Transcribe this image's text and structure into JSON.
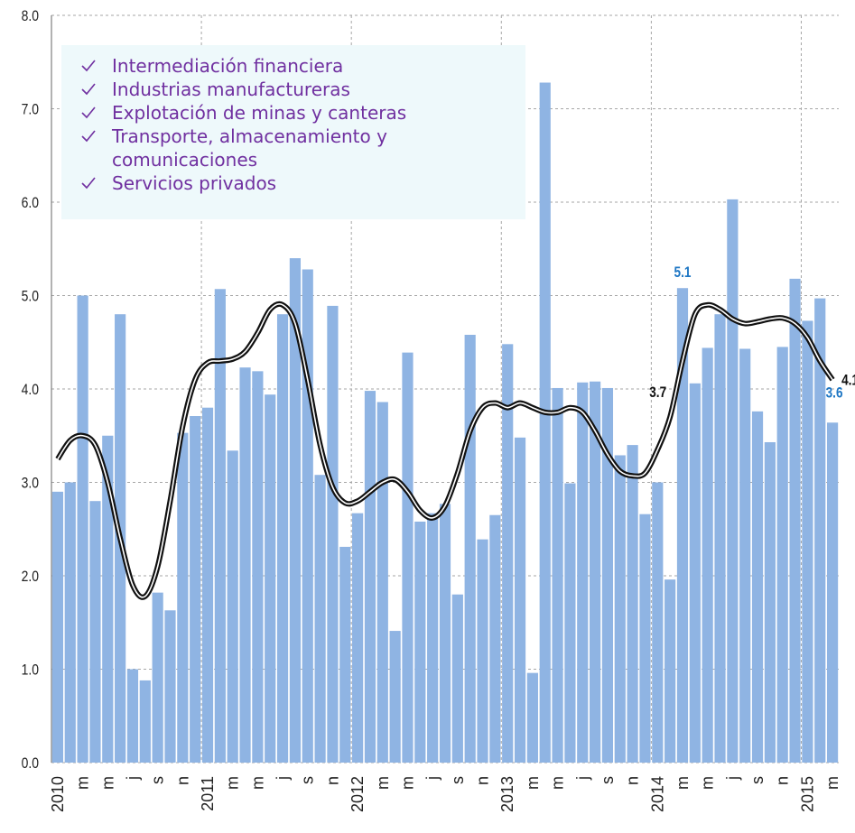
{
  "chart_data": {
    "type": "bar",
    "categories": [
      "2010",
      null,
      "m",
      null,
      "m",
      null,
      "j",
      null,
      "s",
      null,
      "n",
      null,
      "2011",
      null,
      "m",
      null,
      "m",
      null,
      "j",
      null,
      "s",
      null,
      "n",
      null,
      "2012",
      null,
      "m",
      null,
      "m",
      null,
      "j",
      null,
      "s",
      null,
      "n",
      null,
      "2013",
      null,
      "m",
      null,
      "m",
      null,
      "j",
      null,
      "s",
      null,
      "n",
      null,
      "2014",
      null,
      "m",
      null,
      "m",
      null,
      "j",
      null,
      "s",
      null,
      "n",
      null,
      "2015",
      null,
      "m"
    ],
    "series": [
      {
        "type": "bar",
        "color": "#8fb4e3",
        "values": [
          2.9,
          3.0,
          5.0,
          2.8,
          3.5,
          4.8,
          1.0,
          0.88,
          1.82,
          1.63,
          3.53,
          3.71,
          3.8,
          5.07,
          3.34,
          4.23,
          4.19,
          3.94,
          4.8,
          5.4,
          5.28,
          3.08,
          4.89,
          2.31,
          2.67,
          3.98,
          3.86,
          1.41,
          4.39,
          2.58,
          2.67,
          2.77,
          1.8,
          4.58,
          2.39,
          2.65,
          4.48,
          3.48,
          0.96,
          7.28,
          4.01,
          2.99,
          4.07,
          4.08,
          4.01,
          3.29,
          3.4,
          2.66,
          3.0,
          1.96,
          5.08,
          4.06,
          4.44,
          4.8,
          6.03,
          4.43,
          3.76,
          3.43,
          4.45,
          5.18,
          4.73,
          4.97,
          3.64
        ],
        "value_labels": [
          null,
          null,
          null,
          null,
          null,
          null,
          null,
          null,
          null,
          null,
          null,
          null,
          null,
          null,
          null,
          null,
          null,
          null,
          null,
          null,
          null,
          null,
          null,
          null,
          null,
          null,
          null,
          null,
          null,
          null,
          null,
          null,
          null,
          null,
          null,
          null,
          null,
          null,
          null,
          null,
          null,
          null,
          null,
          null,
          null,
          null,
          null,
          null,
          null,
          null,
          "5.1",
          null,
          null,
          null,
          null,
          null,
          null,
          null,
          null,
          null,
          null,
          null,
          "3.6"
        ],
        "label_color": "#1f77c4"
      },
      {
        "type": "line",
        "color": "#111111",
        "values": [
          3.25,
          3.45,
          3.5,
          3.4,
          3.0,
          2.4,
          1.9,
          1.78,
          2.1,
          2.8,
          3.6,
          4.1,
          4.28,
          4.3,
          4.32,
          4.4,
          4.6,
          4.85,
          4.9,
          4.7,
          4.1,
          3.4,
          2.95,
          2.78,
          2.8,
          2.9,
          3.0,
          3.03,
          2.9,
          2.7,
          2.62,
          2.75,
          3.1,
          3.55,
          3.8,
          3.85,
          3.8,
          3.85,
          3.8,
          3.75,
          3.75,
          3.8,
          3.75,
          3.55,
          3.3,
          3.12,
          3.07,
          3.1,
          3.35,
          3.7,
          4.3,
          4.8,
          4.9,
          4.85,
          4.75,
          4.7,
          4.72,
          4.75,
          4.76,
          4.7,
          4.55,
          4.3,
          4.1
        ],
        "value_labels": [
          null,
          null,
          null,
          null,
          null,
          null,
          null,
          null,
          null,
          null,
          null,
          null,
          null,
          null,
          null,
          null,
          null,
          null,
          null,
          null,
          null,
          null,
          null,
          null,
          null,
          null,
          null,
          null,
          null,
          null,
          null,
          null,
          null,
          null,
          null,
          null,
          null,
          null,
          null,
          null,
          null,
          null,
          null,
          null,
          null,
          null,
          null,
          null,
          null,
          "3.7",
          null,
          null,
          null,
          null,
          null,
          null,
          null,
          null,
          null,
          null,
          null,
          null,
          "4.1"
        ],
        "label_color": "#111111"
      }
    ],
    "ylim": [
      0,
      8
    ],
    "yticks": [
      {
        "value": 0,
        "label": "0.0"
      },
      {
        "value": 1,
        "label": "1.0"
      },
      {
        "value": 2,
        "label": "2.0"
      },
      {
        "value": 3,
        "label": "3.0"
      },
      {
        "value": 4,
        "label": "4.0"
      },
      {
        "value": 5,
        "label": "5.0"
      },
      {
        "value": 6,
        "label": "6.0"
      },
      {
        "value": 7,
        "label": "7.0"
      },
      {
        "value": 8,
        "label": "8.0"
      }
    ],
    "grid": true,
    "legend_box": {
      "items": [
        "Intermediación financiera",
        "Industrias manufactureras",
        "Explotación de minas y canteras",
        "Transporte, almacenamiento y comunicaciones",
        "Servicios privados"
      ],
      "color": "#7030a0",
      "background": "#eef9fb"
    }
  }
}
